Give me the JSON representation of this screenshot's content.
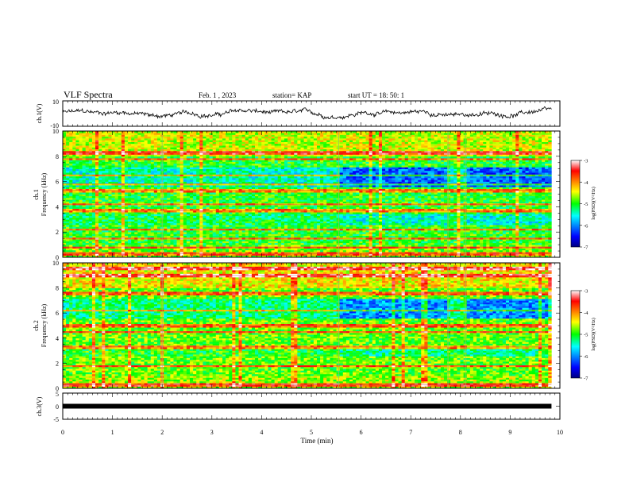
{
  "header": {
    "title": "VLF Spectra",
    "date": "Feb. 1 , 2023",
    "station": "station= KAP",
    "start": "start UT = 18: 50: 1"
  },
  "chart_data": [
    {
      "type": "line",
      "panel": "ch1-timeseries",
      "ylabel": "ch.1(V)",
      "ylim": [
        -10,
        10
      ],
      "ytick_labels": [
        "10",
        "-10"
      ],
      "xlim": [
        0,
        10
      ],
      "data_end_min": 9.83
    },
    {
      "type": "heatmap",
      "panel": "ch1-spectrogram",
      "ylabel_line1": "ch.1",
      "ylabel_line2": "Frequency (kHz)",
      "ylim": [
        0,
        10
      ],
      "yticks": [
        0,
        2,
        4,
        6,
        8,
        10
      ],
      "xlim": [
        0,
        10
      ],
      "data_end_min": 9.83,
      "colorbar": {
        "label": "log(PSD)(V²/Hz)",
        "range": [
          -7,
          -3
        ],
        "ticks": [
          "-3",
          "-4",
          "-5",
          "-6",
          "-7"
        ]
      },
      "segment_breaks_min": [
        2.0,
        5.55,
        7.75,
        8.1
      ],
      "bright_lines_khz": [
        0.3,
        0.8,
        1.5,
        2.2,
        3.7,
        4.2,
        5.3,
        5.8,
        6.5,
        7.8,
        8.3
      ]
    },
    {
      "type": "heatmap",
      "panel": "ch2-spectrogram",
      "ylabel_line1": "ch.2",
      "ylabel_line2": "Frequency (kHz)",
      "ylim": [
        0,
        10
      ],
      "yticks": [
        0,
        2,
        4,
        6,
        8,
        10
      ],
      "xlim": [
        0,
        10
      ],
      "data_end_min": 9.83,
      "colorbar": {
        "label": "log(PSD)(V²/Hz)",
        "range": [
          -7,
          -3
        ],
        "ticks": [
          "-3",
          "-4",
          "-5",
          "-6",
          "-7"
        ]
      },
      "segment_breaks_min": [
        2.0,
        5.55,
        7.75,
        8.1
      ],
      "bright_lines_khz": [
        0.3,
        1.8,
        3.3,
        4.5,
        5.0,
        6.2,
        7.6,
        9.0,
        9.6
      ]
    },
    {
      "type": "line",
      "panel": "ch3-timeseries",
      "ylabel": "ch.3(V)",
      "ylim": [
        -5,
        5
      ],
      "ytick_labels": [
        "5",
        "0",
        "-5"
      ],
      "xlim": [
        0,
        10
      ],
      "xticks": [
        0,
        1,
        2,
        3,
        4,
        5,
        6,
        7,
        8,
        9,
        10
      ],
      "xlabel": "Time (min)",
      "constant_value_v": 0,
      "data_end_min": 9.83
    }
  ]
}
